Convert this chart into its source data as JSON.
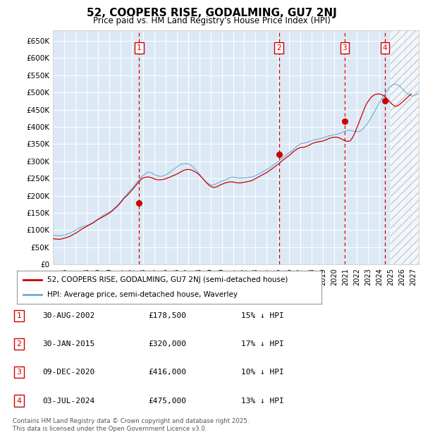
{
  "title": "52, COOPERS RISE, GODALMING, GU7 2NJ",
  "subtitle": "Price paid vs. HM Land Registry's House Price Index (HPI)",
  "legend_line1": "52, COOPERS RISE, GODALMING, GU7 2NJ (semi-detached house)",
  "legend_line2": "HPI: Average price, semi-detached house, Waverley",
  "ylabel_ticks": [
    "£0",
    "£50K",
    "£100K",
    "£150K",
    "£200K",
    "£250K",
    "£300K",
    "£350K",
    "£400K",
    "£450K",
    "£500K",
    "£550K",
    "£600K",
    "£650K"
  ],
  "ylim": [
    0,
    680000
  ],
  "xlim_start": 1995.0,
  "xlim_end": 2027.5,
  "background_color": "#dce9f5",
  "grid_color": "#ffffff",
  "hpi_color": "#6baed6",
  "price_color": "#cc0000",
  "vline_color": "#cc0000",
  "box_color": "#cc0000",
  "copyright": "Contains HM Land Registry data © Crown copyright and database right 2025.\nThis data is licensed under the Open Government Licence v3.0.",
  "purchases": [
    {
      "num": 1,
      "date": "30-AUG-2002",
      "price": "£178,500",
      "hpi_note": "15% ↓ HPI",
      "year": 2002.67
    },
    {
      "num": 2,
      "date": "30-JAN-2015",
      "price": "£320,000",
      "hpi_note": "17% ↓ HPI",
      "year": 2015.08
    },
    {
      "num": 3,
      "date": "09-DEC-2020",
      "price": "£416,000",
      "hpi_note": "10% ↓ HPI",
      "year": 2020.92
    },
    {
      "num": 4,
      "date": "03-JUL-2024",
      "price": "£475,000",
      "hpi_note": "13% ↓ HPI",
      "year": 2024.5
    }
  ],
  "hpi_monthly": [
    85000,
    84500,
    84000,
    83800,
    83600,
    83400,
    83200,
    83000,
    83500,
    84000,
    84500,
    85000,
    85500,
    86000,
    87000,
    88000,
    89000,
    90000,
    91000,
    92000,
    93500,
    95000,
    96500,
    98000,
    99500,
    101000,
    102500,
    104000,
    105500,
    107000,
    108000,
    109000,
    110000,
    111000,
    112000,
    113000,
    113500,
    114000,
    115000,
    116000,
    117500,
    119000,
    120500,
    122000,
    123500,
    125000,
    127000,
    129000,
    131000,
    133000,
    135000,
    137000,
    139000,
    141000,
    143000,
    145000,
    146500,
    148000,
    149000,
    150000,
    151500,
    153000,
    155000,
    157000,
    159500,
    162000,
    164500,
    167000,
    169500,
    172000,
    175000,
    178000,
    181500,
    185000,
    188500,
    192000,
    195000,
    198000,
    201000,
    204000,
    207500,
    211000,
    214000,
    217000,
    220000,
    223000,
    226500,
    230000,
    233000,
    236500,
    240000,
    243000,
    246000,
    249000,
    252500,
    256000,
    258000,
    260000,
    262000,
    264000,
    266000,
    268000,
    268000,
    268000,
    267000,
    266000,
    265000,
    263000,
    261500,
    260000,
    259000,
    258000,
    257500,
    257000,
    256500,
    256000,
    256500,
    257000,
    258000,
    259000,
    260000,
    261000,
    263000,
    265000,
    267000,
    269000,
    271000,
    273000,
    275000,
    277000,
    279000,
    281000,
    283000,
    285000,
    287000,
    289000,
    290000,
    291000,
    291500,
    292000,
    292500,
    293000,
    293000,
    293000,
    292000,
    291000,
    290000,
    289000,
    287000,
    285000,
    282000,
    279000,
    276000,
    273000,
    270000,
    267000,
    263000,
    259000,
    255000,
    252000,
    249000,
    246000,
    243000,
    240000,
    238000,
    236000,
    234500,
    233000,
    232000,
    231000,
    231000,
    231500,
    232000,
    233000,
    234000,
    235500,
    237000,
    238500,
    240000,
    241000,
    242000,
    243000,
    244000,
    245000,
    246000,
    247500,
    249000,
    250000,
    251000,
    252000,
    253000,
    253500,
    254000,
    253500,
    253000,
    252500,
    252000,
    251500,
    251000,
    251000,
    251000,
    251000,
    251000,
    251500,
    252000,
    252000,
    252000,
    252000,
    252500,
    253000,
    253500,
    254000,
    254500,
    255000,
    256000,
    257000,
    258000,
    259500,
    261000,
    262500,
    264000,
    265500,
    267000,
    268500,
    270000,
    271500,
    273000,
    274500,
    276000,
    277500,
    279000,
    281000,
    283000,
    285000,
    287000,
    289000,
    291000,
    293000,
    295000,
    297000,
    299000,
    301000,
    303500,
    306000,
    308500,
    311000,
    313000,
    315000,
    317000,
    319000,
    321000,
    323000,
    325000,
    327000,
    329000,
    331000,
    333000,
    335500,
    338000,
    340500,
    343000,
    345000,
    347000,
    349000,
    351000,
    352000,
    352000,
    352000,
    352500,
    353000,
    354000,
    355000,
    356000,
    357000,
    358000,
    359000,
    360000,
    361000,
    362000,
    362500,
    363000,
    363500,
    364000,
    364500,
    365000,
    365500,
    366000,
    367000,
    368000,
    369000,
    370000,
    371000,
    372000,
    373000,
    374000,
    374500,
    375000,
    375500,
    376000,
    376500,
    377000,
    377500,
    378000,
    378500,
    379000,
    380000,
    381000,
    382000,
    383000,
    384500,
    386000,
    387000,
    388000,
    389000,
    390000,
    390500,
    390000,
    389500,
    389000,
    388500,
    388000,
    387500,
    387000,
    386500,
    386000,
    386000,
    386500,
    387000,
    388000,
    390000,
    393000,
    396000,
    399000,
    402000,
    405000,
    409000,
    413000,
    417000,
    421000,
    425000,
    430000,
    435000,
    440000,
    445000,
    450000,
    455000,
    460000,
    465000,
    470000,
    475000,
    480000,
    484000,
    488000,
    492000,
    496000,
    500000,
    504000,
    508000,
    511500,
    515000,
    517500,
    520000,
    521500,
    523000,
    524000,
    524500,
    524000,
    523000,
    521500,
    520000,
    518000,
    515000,
    512000,
    509000,
    506000,
    503000,
    500000,
    498000,
    496000,
    494500,
    493000,
    492000,
    491000,
    490000,
    490500,
    491000,
    492000,
    493000,
    494500,
    496000,
    497500,
    499000,
    500500,
    502000,
    503500,
    505000,
    506500,
    508000,
    509500,
    511000,
    512500,
    514000
  ],
  "price_monthly": [
    75000,
    74500,
    74000,
    73800,
    73500,
    73200,
    73000,
    73000,
    73500,
    74000,
    74800,
    75500,
    76000,
    76800,
    77500,
    78500,
    79500,
    80500,
    81500,
    83000,
    84500,
    86000,
    87500,
    89000,
    90500,
    92000,
    93500,
    95500,
    97500,
    99500,
    101000,
    103000,
    104500,
    106000,
    107500,
    109000,
    110500,
    112000,
    113500,
    115000,
    116500,
    118000,
    119500,
    121000,
    123000,
    125000,
    127000,
    129000,
    130500,
    132000,
    133500,
    135000,
    136500,
    138000,
    139500,
    141000,
    142500,
    144000,
    145500,
    147000,
    149000,
    151000,
    153000,
    155000,
    157500,
    160000,
    162500,
    165000,
    167500,
    170000,
    173000,
    176000,
    179000,
    182500,
    186000,
    189500,
    193000,
    195500,
    198000,
    200500,
    203000,
    206000,
    209000,
    212000,
    215000,
    218000,
    221500,
    225000,
    228000,
    231500,
    235000,
    238000,
    241000,
    244000,
    247000,
    250000,
    251000,
    252000,
    253000,
    253500,
    254000,
    254500,
    254000,
    253500,
    253000,
    252000,
    251000,
    250000,
    249000,
    248000,
    247000,
    246500,
    246000,
    246000,
    246000,
    246000,
    246500,
    247000,
    247500,
    248000,
    249000,
    250000,
    251000,
    252000,
    253000,
    254000,
    255500,
    257000,
    258000,
    259000,
    260000,
    261000,
    262500,
    264000,
    265500,
    267000,
    268500,
    270000,
    271500,
    273000,
    274000,
    275000,
    275500,
    276000,
    276000,
    276000,
    275500,
    275000,
    274000,
    273000,
    271500,
    270000,
    268500,
    267000,
    265000,
    263000,
    260500,
    258000,
    255000,
    252000,
    249000,
    246000,
    243000,
    240000,
    237000,
    234000,
    231500,
    229000,
    227500,
    226000,
    225000,
    224000,
    224000,
    224500,
    225000,
    226000,
    227500,
    229000,
    230500,
    232000,
    233000,
    234000,
    235000,
    236000,
    237000,
    238000,
    238500,
    239000,
    239500,
    240000,
    240000,
    240000,
    239500,
    239000,
    238500,
    238000,
    237500,
    237000,
    237000,
    237000,
    237000,
    237500,
    238000,
    238500,
    239000,
    239500,
    240000,
    240500,
    241000,
    241500,
    242000,
    243000,
    244000,
    245000,
    246500,
    248000,
    249500,
    251000,
    252500,
    254000,
    255500,
    257000,
    258500,
    260000,
    261500,
    263000,
    264500,
    266000,
    267500,
    269000,
    271000,
    273000,
    275000,
    277000,
    279000,
    281000,
    283000,
    285000,
    287000,
    289000,
    291000,
    293000,
    295500,
    298000,
    300500,
    303000,
    305000,
    307000,
    309000,
    311000,
    313000,
    315000,
    317000,
    319500,
    322000,
    324500,
    327000,
    329000,
    331000,
    333000,
    335000,
    336500,
    338000,
    339000,
    340000,
    340000,
    340000,
    340500,
    341000,
    342000,
    343000,
    344000,
    345000,
    346500,
    348000,
    349500,
    351000,
    352000,
    353000,
    354000,
    355000,
    355500,
    356000,
    356500,
    357000,
    357500,
    358000,
    358500,
    359000,
    360000,
    361000,
    362000,
    363000,
    364500,
    366000,
    367000,
    368000,
    368500,
    369000,
    369500,
    370000,
    370000,
    370000,
    369500,
    369000,
    368000,
    367000,
    365500,
    364000,
    362500,
    361000,
    360000,
    359000,
    358500,
    358000,
    358000,
    358500,
    360000,
    363000,
    367000,
    372000,
    377000,
    383000,
    390000,
    397000,
    404000,
    411000,
    418000,
    425000,
    432000,
    439000,
    446000,
    453000,
    460000,
    465000,
    470000,
    474000,
    478000,
    482000,
    485000,
    488000,
    490000,
    492000,
    493500,
    494500,
    495000,
    495500,
    496000,
    495500,
    495000,
    494000,
    493000,
    491500,
    490000,
    488000,
    485000,
    482000,
    479000,
    476000,
    473000,
    470000,
    467500,
    465000,
    463000,
    461000,
    460000,
    460000,
    461000,
    462500,
    464000,
    466000,
    468500,
    471000,
    473500,
    476000,
    478500,
    481000,
    483500,
    486000,
    488500,
    491000,
    493500,
    496000
  ],
  "purchase_dot_values": [
    178500,
    320000,
    416000,
    475000
  ],
  "hatch_start_year": 2025.0
}
